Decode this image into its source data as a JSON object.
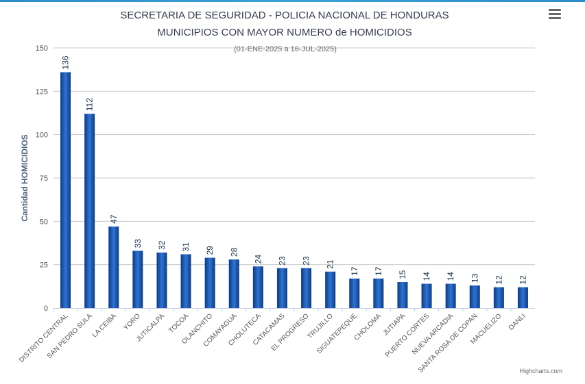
{
  "chart_data": {
    "type": "bar",
    "title": "SECRETARIA DE SEGURIDAD - POLICIA NACIONAL DE HONDURAS",
    "title_line2": "MUNICIPIOS CON MAYOR NUMERO de HOMICIDIOS",
    "subtitle": "(01-ENE-2025 a 16-JUL-2025)",
    "xlabel": "",
    "ylabel": "Cantidad HOMICIDIOS",
    "ylim": [
      0,
      150
    ],
    "yticks": [
      0,
      25,
      50,
      75,
      100,
      125,
      150
    ],
    "grid": true,
    "categories": [
      "DISTRITO CENTRAL",
      "SAN PEDRO SULA",
      "LA CEIBA",
      "YORO",
      "JUTICALPA",
      "TOCOA",
      "OLANCHITO",
      "COMAYAGUA",
      "CHOLUTECA",
      "CATACAMAS",
      "EL PROGRESO",
      "TRUJILLO",
      "SIGUATEPEQUE",
      "CHOLOMA",
      "JUTIAPA",
      "PUERTO CORTES",
      "NUEVA ARCADIA",
      "SANTA ROSA DE COPAN",
      "MACUELIZO",
      "DANLI"
    ],
    "values": [
      136,
      112,
      47,
      33,
      32,
      31,
      29,
      28,
      24,
      23,
      23,
      21,
      17,
      17,
      15,
      14,
      14,
      13,
      12,
      12
    ],
    "bar_color": "#1f5fb8",
    "credits": "Highcharts.com"
  }
}
